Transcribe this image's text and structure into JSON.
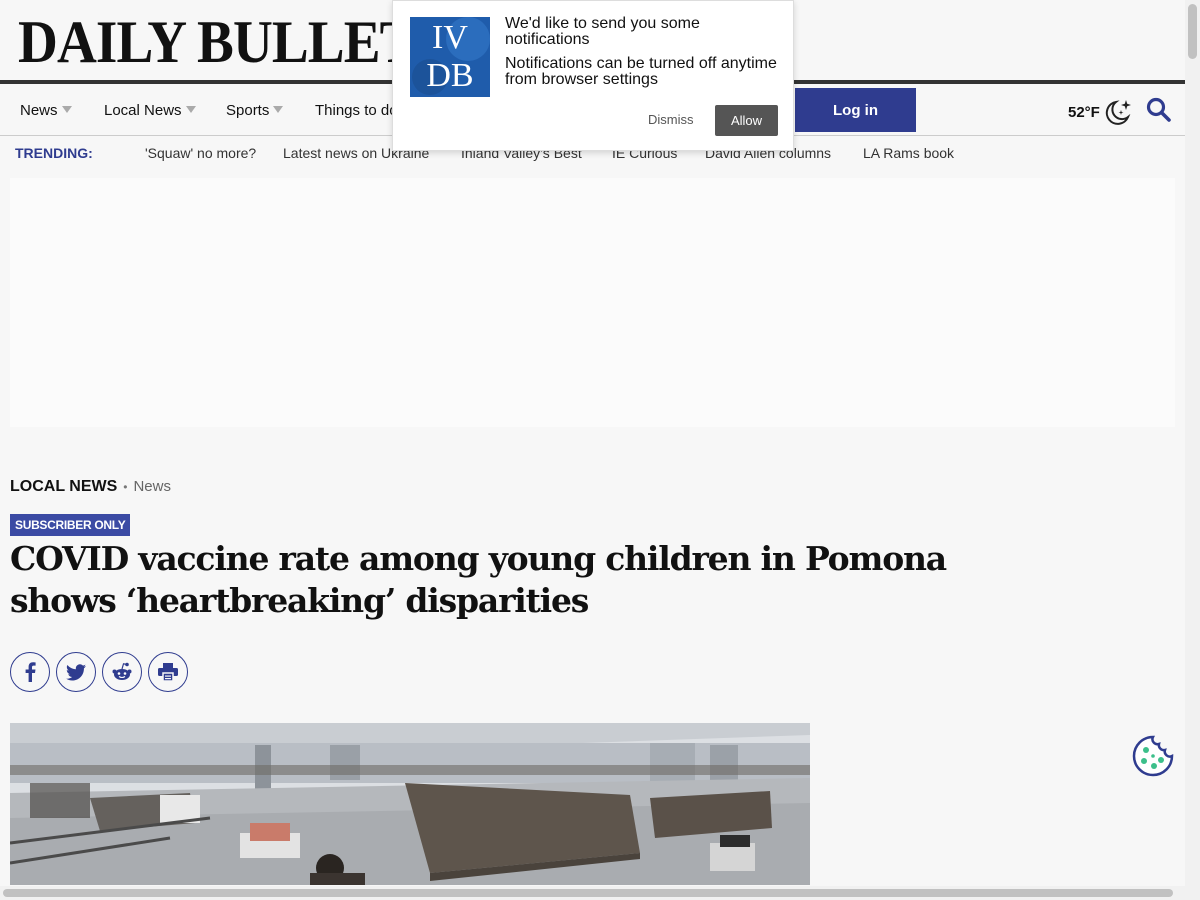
{
  "masthead": {
    "logo_text": "DAILY BULLETIN"
  },
  "nav": {
    "items": [
      {
        "label": "News"
      },
      {
        "label": "Local News"
      },
      {
        "label": "Sports"
      },
      {
        "label": "Things to do"
      }
    ],
    "login_label": "Log in",
    "weather_temp": "52°F"
  },
  "trending": {
    "label": "TRENDING:",
    "links": [
      "'Squaw' no more?",
      "Latest news on Ukraine",
      "Inland Valley's Best",
      "IE Curious",
      "David Allen columns",
      "LA Rams book"
    ]
  },
  "article": {
    "section": "LOCAL NEWS",
    "subsection": "News",
    "badge": "SUBSCRIBER ONLY",
    "headline": "COVID vaccine rate among young children in Pomona shows ‘heartbreaking’ disparities"
  },
  "notification": {
    "logo_line1": "IV",
    "logo_line2": "DB",
    "title": "We'd like to send you some notifications",
    "body": "Notifications can be turned off anytime from browser settings",
    "dismiss_label": "Dismiss",
    "allow_label": "Allow"
  },
  "colors": {
    "brand": "#2f3c8f",
    "badge": "#3b4ba4"
  }
}
